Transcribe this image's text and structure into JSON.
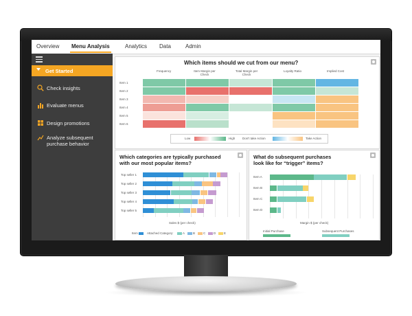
{
  "nav": {
    "tabs": [
      {
        "label": "Overview",
        "active": false
      },
      {
        "label": "Menu Analysis",
        "active": true
      },
      {
        "label": "Analytics",
        "active": false
      },
      {
        "label": "Data",
        "active": false
      },
      {
        "label": "Admin",
        "active": false
      }
    ]
  },
  "sidebar": {
    "get_started": "Get Started",
    "items": [
      {
        "label": "Check insights",
        "icon": "magnifier-icon"
      },
      {
        "label": "Evaluate menus",
        "icon": "bar-chart-icon"
      },
      {
        "label": "Design promotions",
        "icon": "grid-icon"
      },
      {
        "label": "Analyze subsequent purchase behavior",
        "icon": "line-chart-icon"
      }
    ]
  },
  "heatmap": {
    "title": "Which items should we cut from our menu?",
    "columns": [
      "Frequency",
      "Item Margin per Check",
      "Total Margin per Check",
      "Loyalty Ratio",
      "Implied Cost"
    ],
    "rows": [
      "Item 1",
      "Item 2",
      "Item 3",
      "Item 4",
      "Item 5",
      "Item 6"
    ],
    "colors": [
      [
        "#7fc9a7",
        "#7fc9a7",
        "#c6e6d6",
        "#7fc9a7",
        "#63b6e3"
      ],
      [
        "#7fc9a7",
        "#e8716c",
        "#e8716c",
        "#7fc9a7",
        "#c6e6d6"
      ],
      [
        "#f2b8b0",
        "#f6d0c8",
        "#ffffff",
        "#c7e6f3",
        "#f9c481"
      ],
      [
        "#ee9d94",
        "#7fc9a7",
        "#c6e6d6",
        "#7fc9a7",
        "#f9c481"
      ],
      [
        "#fbe3dd",
        "#d7eee2",
        "#ffffff",
        "#f9c481",
        "#f9c481"
      ],
      [
        "#e8716c",
        "#b9e0cb",
        "#ffffff",
        "#fde2c2",
        "#f9c481"
      ]
    ],
    "legend": {
      "low": "Low",
      "high": "High",
      "dont_take": "Don't take Action",
      "take": "Take Action"
    }
  },
  "categories_chart": {
    "title_line1": "Which categories are typically purchased",
    "title_line2": "with our most popular items?",
    "xlabel": "Sales $ (per check)",
    "legend_item": "Item",
    "legend_attached": "Attached Category:",
    "legend_a": "A",
    "legend_b": "B",
    "legend_c": "C",
    "legend_d": "D",
    "legend_e": "E",
    "colors": {
      "item": "#2f8fd6",
      "a": "#80cfc1",
      "b": "#7fb8e3",
      "c": "#f9c481",
      "d": "#c59bd0"
    },
    "chart_data": {
      "type": "bar",
      "orientation": "horizontal",
      "stacked": true,
      "categories": [
        "Top seller 1",
        "Top seller 2",
        "Top seller 3",
        "Top seller 4",
        "Top seller 5"
      ],
      "series": [
        {
          "name": "Item",
          "values": [
            55,
            40,
            38,
            42,
            15
          ]
        },
        {
          "name": "A",
          "values": [
            35,
            30,
            28,
            25,
            40
          ]
        },
        {
          "name": "B",
          "values": [
            10,
            10,
            12,
            8,
            10
          ]
        },
        {
          "name": "C",
          "values": [
            5,
            15,
            10,
            10,
            8
          ]
        },
        {
          "name": "D",
          "values": [
            10,
            10,
            12,
            10,
            10
          ]
        }
      ],
      "xlim": [
        0,
        130
      ]
    }
  },
  "trigger_chart": {
    "title_line1": "What do subsequent purchases",
    "title_line2": "look like for “trigger” items?",
    "xlabel": "Margin $ (per check)",
    "legend_initial": "Initial Purchase",
    "legend_subsequent": "Subsequent Purchases",
    "colors": {
      "initial": "#5cb88a",
      "subsequent": "#80cfc1",
      "extra": "#f7d56a"
    },
    "chart_data": {
      "type": "bar",
      "orientation": "horizontal",
      "stacked": true,
      "categories": [
        "Item A",
        "Item B",
        "Item C",
        "Item D"
      ],
      "series": [
        {
          "name": "Initial Purchase",
          "values": [
            60,
            10,
            10,
            10
          ]
        },
        {
          "name": "Subsequent Purchases",
          "values": [
            45,
            35,
            40,
            5
          ]
        },
        {
          "name": "Other",
          "values": [
            12,
            8,
            10,
            0
          ]
        }
      ],
      "xlim": [
        0,
        140
      ]
    }
  }
}
